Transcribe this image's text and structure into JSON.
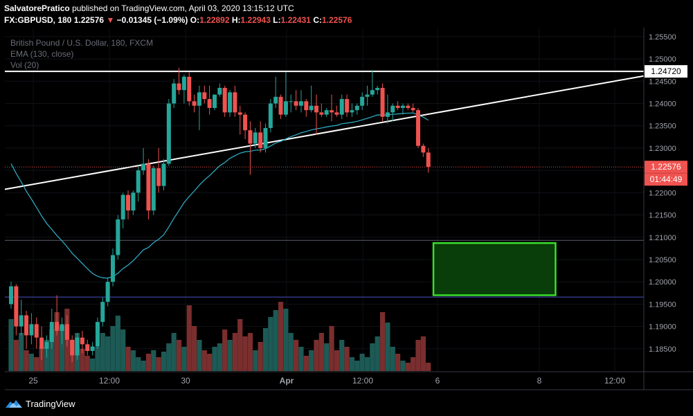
{
  "header": {
    "author": "SalvatorePratico",
    "published": "published on TradingView.com, April 03, 2020 13:15:12 UTC",
    "symbol": "FX:GBPUSD, 180",
    "last": "1.22576",
    "change_arrow": "▼",
    "change": "−0.01345 (−1.09%)",
    "o_label": "O:",
    "o": "1.22892",
    "h_label": "H:",
    "h": "1.22943",
    "l_label": "L:",
    "l": "1.22431",
    "c_label": "C:",
    "c": "1.22576"
  },
  "legend": {
    "instrument": "British Pound / U.S. Dollar, 180, FXCM",
    "ema": "EMA (130, close)",
    "vol": "Vol (20)"
  },
  "footer": {
    "brand": "TradingView"
  },
  "colors": {
    "up": "#26a69a",
    "down": "#ef5350",
    "vol_up": "#1d5a55",
    "vol_down": "#7a2e2e",
    "ema": "#2fb4cf",
    "zone_border": "#39e02b",
    "zone_fill": "#093d09",
    "price_line": "#ef5350"
  },
  "chart_data": {
    "type": "candlestick",
    "y_axis": {
      "ticks": [
        "1.25500",
        "1.25000",
        "1.24500",
        "1.24000",
        "1.23500",
        "1.23000",
        "1.22500",
        "1.22000",
        "1.21500",
        "1.21000",
        "1.20500",
        "1.20000",
        "1.19500",
        "1.19000",
        "1.18500"
      ],
      "range": [
        1.18,
        1.257
      ]
    },
    "x_axis": {
      "ticks": [
        "25",
        "12:00",
        "30",
        "Apr",
        "12:00",
        "6",
        "8",
        "12:00"
      ]
    },
    "price_labels": {
      "horizontal_line": "1.24720",
      "last_price": "1.22576",
      "countdown": "01:44:49"
    },
    "horizontal_line": 1.2472,
    "horizontal_lines": [
      1.2093,
      1.1966
    ],
    "trend_line": {
      "from": [
        0,
        1.221
      ],
      "to": [
        123,
        1.2459
      ]
    },
    "zone": {
      "x0": 83,
      "x1": 107,
      "top": 1.2087,
      "bottom": 1.197
    },
    "candles": [
      [
        1.195,
        1.2,
        1.194,
        1.199,
        0.75
      ],
      [
        1.199,
        1.1995,
        1.188,
        1.19,
        0.45
      ],
      [
        1.19,
        1.196,
        1.188,
        1.1925,
        0.55
      ],
      [
        1.1925,
        1.1935,
        1.185,
        1.188,
        0.3
      ],
      [
        1.188,
        1.193,
        1.186,
        1.1905,
        0.25
      ],
      [
        1.1905,
        1.192,
        1.185,
        1.1875,
        0.2
      ],
      [
        1.1875,
        1.19,
        1.1825,
        1.185,
        0.35
      ],
      [
        1.185,
        1.188,
        1.183,
        1.1865,
        0.45
      ],
      [
        1.1865,
        1.194,
        1.185,
        1.191,
        0.6
      ],
      [
        1.191,
        1.197,
        1.188,
        1.189,
        0.85
      ],
      [
        1.189,
        1.192,
        1.186,
        1.1905,
        0.65
      ],
      [
        1.1905,
        1.1925,
        1.1855,
        1.187,
        0.9
      ],
      [
        1.187,
        1.188,
        1.182,
        1.1835,
        0.45
      ],
      [
        1.1835,
        1.1885,
        1.1825,
        1.1875,
        0.55
      ],
      [
        1.1875,
        1.189,
        1.184,
        1.186,
        0.32
      ],
      [
        1.186,
        1.187,
        1.1835,
        1.1845,
        0.22
      ],
      [
        1.1845,
        1.1865,
        1.1835,
        1.1855,
        0.18
      ],
      [
        1.1855,
        1.192,
        1.185,
        1.191,
        0.35
      ],
      [
        1.191,
        1.1965,
        1.19,
        1.1955,
        0.55
      ],
      [
        1.1955,
        1.201,
        1.1945,
        1.2,
        0.5
      ],
      [
        1.2,
        1.2075,
        1.199,
        1.206,
        0.65
      ],
      [
        1.206,
        1.215,
        1.205,
        1.214,
        0.8
      ],
      [
        1.214,
        1.22,
        1.212,
        1.2195,
        0.6
      ],
      [
        1.2195,
        1.2205,
        1.214,
        1.216,
        0.35
      ],
      [
        1.216,
        1.2205,
        1.215,
        1.22,
        0.3
      ],
      [
        1.22,
        1.226,
        1.218,
        1.225,
        0.2
      ],
      [
        1.225,
        1.23,
        1.224,
        1.2265,
        0.15
      ],
      [
        1.2265,
        1.2275,
        1.214,
        1.216,
        0.25
      ],
      [
        1.216,
        1.226,
        1.215,
        1.2255,
        0.3
      ],
      [
        1.2255,
        1.23,
        1.22,
        1.2215,
        0.2
      ],
      [
        1.2215,
        1.2275,
        1.2205,
        1.2265,
        0.28
      ],
      [
        1.2265,
        1.241,
        1.226,
        1.24,
        0.4
      ],
      [
        1.24,
        1.2455,
        1.239,
        1.2445,
        0.55
      ],
      [
        1.2445,
        1.248,
        1.242,
        1.243,
        0.45
      ],
      [
        1.243,
        1.2465,
        1.24,
        1.246,
        0.35
      ],
      [
        1.246,
        1.247,
        1.2395,
        1.2405,
        0.95
      ],
      [
        1.2405,
        1.242,
        1.238,
        1.2395,
        0.65
      ],
      [
        1.2395,
        1.244,
        1.234,
        1.2425,
        0.45
      ],
      [
        1.2425,
        1.244,
        1.24,
        1.241,
        0.3
      ],
      [
        1.241,
        1.244,
        1.2375,
        1.239,
        0.25
      ],
      [
        1.239,
        1.242,
        1.2385,
        1.242,
        0.35
      ],
      [
        1.242,
        1.2445,
        1.2415,
        1.2435,
        0.4
      ],
      [
        1.2435,
        1.244,
        1.237,
        1.238,
        0.6
      ],
      [
        1.238,
        1.243,
        1.237,
        1.2425,
        0.45
      ],
      [
        1.2425,
        1.244,
        1.237,
        1.238,
        0.55
      ],
      [
        1.238,
        1.2395,
        1.233,
        1.2375,
        0.75
      ],
      [
        1.2375,
        1.238,
        1.232,
        1.234,
        0.5
      ],
      [
        1.234,
        1.236,
        1.224,
        1.231,
        0.55
      ],
      [
        1.231,
        1.2345,
        1.23,
        1.2335,
        0.3
      ],
      [
        1.2335,
        1.236,
        1.229,
        1.23,
        0.42
      ],
      [
        1.23,
        1.2355,
        1.229,
        1.2345,
        0.62
      ],
      [
        1.2345,
        1.241,
        1.2335,
        1.24,
        0.78
      ],
      [
        1.24,
        1.246,
        1.239,
        1.2415,
        0.88
      ],
      [
        1.2415,
        1.242,
        1.2365,
        1.2375,
        1.0
      ],
      [
        1.2375,
        1.247,
        1.237,
        1.2405,
        0.9
      ],
      [
        1.2405,
        1.242,
        1.238,
        1.2405,
        0.55
      ],
      [
        1.2405,
        1.243,
        1.2385,
        1.2395,
        0.45
      ],
      [
        1.2395,
        1.243,
        1.238,
        1.2405,
        0.35
      ],
      [
        1.2405,
        1.241,
        1.237,
        1.2385,
        0.22
      ],
      [
        1.2385,
        1.244,
        1.238,
        1.2395,
        0.3
      ],
      [
        1.2395,
        1.242,
        1.233,
        1.238,
        0.45
      ],
      [
        1.238,
        1.24,
        1.237,
        1.2375,
        0.55
      ],
      [
        1.2375,
        1.239,
        1.237,
        1.2385,
        0.4
      ],
      [
        1.2385,
        1.242,
        1.236,
        1.238,
        0.65
      ],
      [
        1.238,
        1.2395,
        1.237,
        1.2375,
        0.3
      ],
      [
        1.2375,
        1.242,
        1.2365,
        1.241,
        0.45
      ],
      [
        1.241,
        1.242,
        1.237,
        1.238,
        0.35
      ],
      [
        1.238,
        1.24,
        1.237,
        1.2385,
        0.2
      ],
      [
        1.2385,
        1.24,
        1.2375,
        1.2395,
        0.15
      ],
      [
        1.2395,
        1.2425,
        1.2385,
        1.2415,
        0.25
      ],
      [
        1.2415,
        1.244,
        1.2395,
        1.242,
        0.2
      ],
      [
        1.242,
        1.2475,
        1.2415,
        1.243,
        0.4
      ],
      [
        1.243,
        1.244,
        1.242,
        1.2435,
        0.5
      ],
      [
        1.2435,
        1.2445,
        1.236,
        1.237,
        0.85
      ],
      [
        1.237,
        1.242,
        1.2355,
        1.238,
        0.7
      ],
      [
        1.238,
        1.24,
        1.236,
        1.2395,
        0.35
      ],
      [
        1.2395,
        1.2405,
        1.2385,
        1.239,
        0.25
      ],
      [
        1.239,
        1.24,
        1.2375,
        1.2395,
        0.15
      ],
      [
        1.2395,
        1.24,
        1.2385,
        1.239,
        0.12
      ],
      [
        1.239,
        1.24,
        1.238,
        1.2385,
        0.2
      ],
      [
        1.2385,
        1.239,
        1.23,
        1.2305,
        0.45
      ],
      [
        1.2305,
        1.231,
        1.228,
        1.229,
        0.5
      ],
      [
        1.229,
        1.23,
        1.2245,
        1.2258,
        0.12
      ]
    ]
  }
}
